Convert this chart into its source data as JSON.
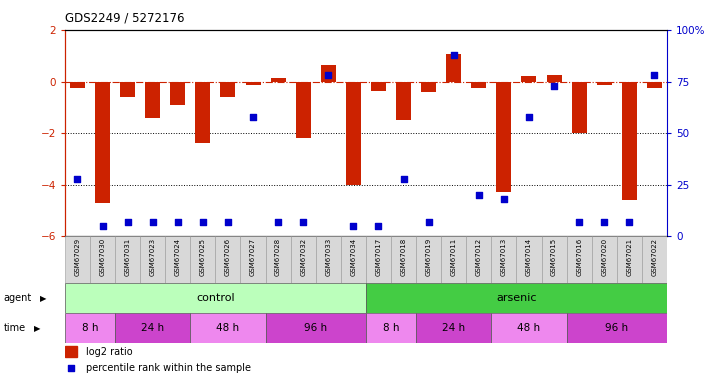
{
  "title": "GDS2249 / 5272176",
  "samples": [
    "GSM67029",
    "GSM67030",
    "GSM67031",
    "GSM67023",
    "GSM67024",
    "GSM67025",
    "GSM67026",
    "GSM67027",
    "GSM67028",
    "GSM67032",
    "GSM67033",
    "GSM67034",
    "GSM67017",
    "GSM67018",
    "GSM67019",
    "GSM67011",
    "GSM67012",
    "GSM67013",
    "GSM67014",
    "GSM67015",
    "GSM67016",
    "GSM67020",
    "GSM67021",
    "GSM67022"
  ],
  "log2_ratio": [
    -0.25,
    -4.7,
    -0.6,
    -1.4,
    -0.9,
    -2.4,
    -0.6,
    -0.15,
    0.15,
    -2.2,
    0.65,
    -4.0,
    -0.35,
    -1.5,
    -0.4,
    1.05,
    -0.25,
    -4.3,
    0.2,
    0.25,
    -2.0,
    -0.15,
    -4.6,
    -0.25
  ],
  "percentile": [
    28,
    5,
    7,
    7,
    7,
    7,
    7,
    58,
    7,
    7,
    78,
    5,
    5,
    28,
    7,
    88,
    20,
    18,
    58,
    73,
    7,
    7,
    7,
    78
  ],
  "ylim_left": [
    -6,
    2
  ],
  "ylim_right": [
    0,
    100
  ],
  "yticks_left": [
    -6,
    -4,
    -2,
    0,
    2
  ],
  "yticks_right": [
    0,
    25,
    50,
    75,
    100
  ],
  "ytick_labels_right": [
    "0",
    "25",
    "50",
    "75",
    "100%"
  ],
  "bar_color": "#cc2200",
  "scatter_color": "#0000cc",
  "dotted_lines": [
    -2,
    -4
  ],
  "legend_bar_label": "log2 ratio",
  "legend_scatter_label": "percentile rank within the sample",
  "control_color": "#bbffbb",
  "arsenic_color": "#44cc44",
  "time_color_light": "#ee88ee",
  "time_color_dark": "#cc44cc",
  "sample_bg": "#d8d8d8",
  "bg_color": "#ffffff",
  "time_groups_ctrl": [
    [
      0,
      2,
      "8 h"
    ],
    [
      2,
      5,
      "24 h"
    ],
    [
      5,
      8,
      "48 h"
    ],
    [
      8,
      12,
      "96 h"
    ]
  ],
  "time_groups_ars": [
    [
      12,
      14,
      "8 h"
    ],
    [
      14,
      17,
      "24 h"
    ],
    [
      17,
      20,
      "48 h"
    ],
    [
      20,
      24,
      "96 h"
    ]
  ]
}
